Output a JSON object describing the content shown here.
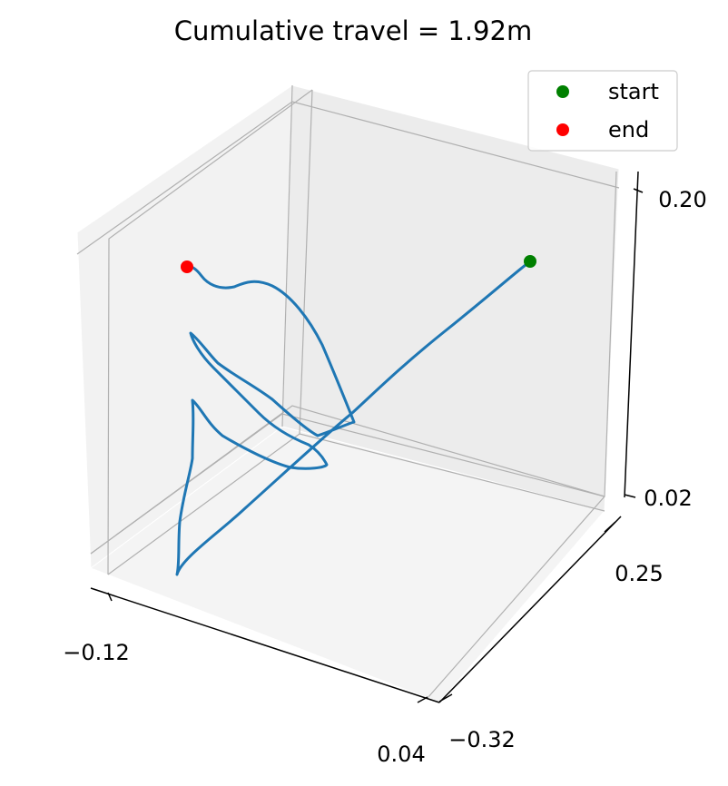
{
  "chart_data": {
    "type": "line",
    "projection": "3d",
    "title": "Cumulative travel = 1.92m",
    "grid": true,
    "legend_placement": "top-right",
    "x_axis": {
      "label": "",
      "ticks": [
        "−0.12",
        "0.04"
      ]
    },
    "y_axis": {
      "label": "",
      "ticks": [
        "−0.32",
        "0.25"
      ]
    },
    "z_axis": {
      "label": "",
      "ticks": [
        "0.02",
        "0.20"
      ]
    },
    "series": [
      {
        "kind": "trajectory",
        "color": "#1f77b4"
      }
    ],
    "markers": [
      {
        "name": "start",
        "color": "#008000"
      },
      {
        "name": "end",
        "color": "#ff0000"
      }
    ]
  }
}
